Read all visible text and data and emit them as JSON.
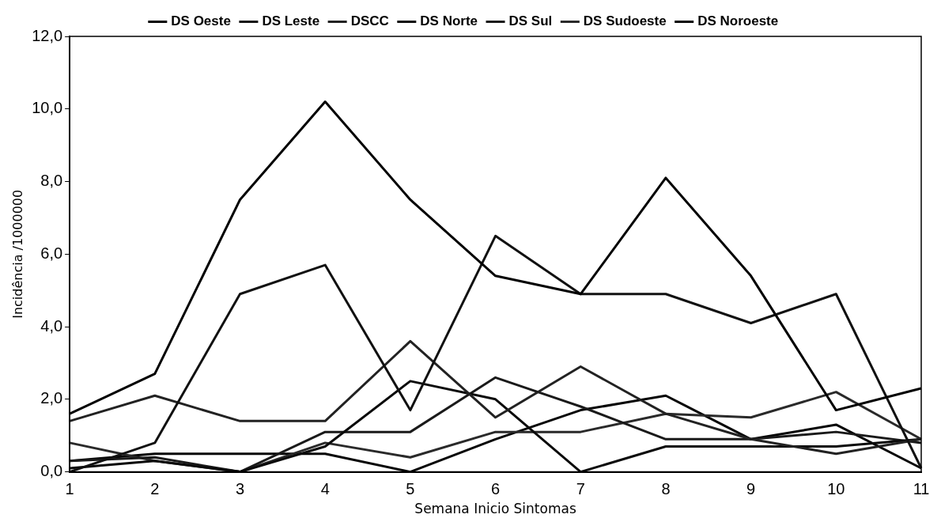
{
  "chart_data": {
    "type": "line",
    "xlabel": "Semana Inicio Sintomas",
    "ylabel": "Incidência /1000000",
    "categories": [
      "1",
      "2",
      "3",
      "4",
      "5",
      "6",
      "7",
      "8",
      "9",
      "10",
      "11"
    ],
    "series": [
      {
        "name": "DS Oeste",
        "color": "#000000",
        "values": [
          1.6,
          2.7,
          7.5,
          10.2,
          7.5,
          5.4,
          4.9,
          8.1,
          5.4,
          1.7,
          2.3
        ]
      },
      {
        "name": "DS Leste",
        "color": "#111111",
        "values": [
          0.0,
          0.8,
          4.9,
          5.7,
          1.7,
          6.5,
          4.9,
          4.9,
          4.1,
          4.9,
          0.1
        ]
      },
      {
        "name": "DSCC",
        "color": "#222222",
        "values": [
          1.4,
          2.1,
          1.4,
          1.4,
          3.6,
          1.5,
          2.9,
          1.6,
          0.9,
          0.5,
          0.9
        ]
      },
      {
        "name": "DS Norte",
        "color": "#0a0a0a",
        "values": [
          0.1,
          0.3,
          0.0,
          0.7,
          2.5,
          2.0,
          0.0,
          0.7,
          0.7,
          0.7,
          0.9
        ]
      },
      {
        "name": "DS Sul",
        "color": "#1a1a1a",
        "values": [
          0.3,
          0.4,
          0.0,
          1.1,
          1.1,
          2.6,
          1.8,
          0.9,
          0.9,
          1.1,
          0.8
        ]
      },
      {
        "name": "DS Sudoeste",
        "color": "#2a2a2a",
        "values": [
          0.8,
          0.3,
          0.0,
          0.8,
          0.4,
          1.1,
          1.1,
          1.6,
          1.5,
          2.2,
          0.9
        ]
      },
      {
        "name": "DS Noroeste",
        "color": "#050505",
        "values": [
          0.3,
          0.5,
          0.5,
          0.5,
          0.0,
          0.9,
          1.7,
          2.1,
          0.9,
          1.3,
          0.1
        ]
      }
    ],
    "ylim": [
      0,
      12
    ],
    "yticks": [
      {
        "value": 0,
        "label": "0,0"
      },
      {
        "value": 2,
        "label": "2,0"
      },
      {
        "value": 4,
        "label": "4,0"
      },
      {
        "value": 6,
        "label": "6,0"
      },
      {
        "value": 8,
        "label": "8,0"
      },
      {
        "value": 10,
        "label": "10,0"
      },
      {
        "value": 12,
        "label": "12,0"
      }
    ],
    "grid": false,
    "legend": "top",
    "marker": "none",
    "line_style": "solid"
  }
}
